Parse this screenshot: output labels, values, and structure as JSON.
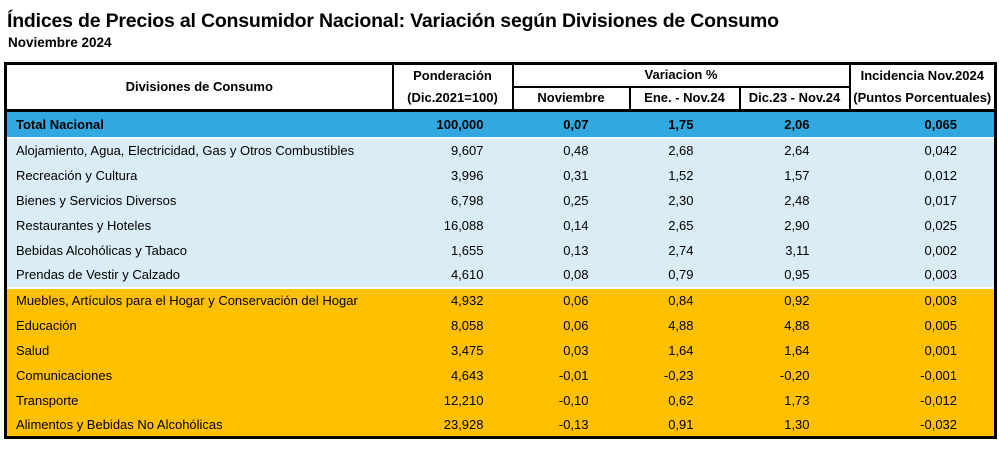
{
  "page": {
    "title": "Índices de Precios al Consumidor Nacional: Variación según Divisiones de Consumo",
    "subtitle": "Noviembre 2024"
  },
  "colors": {
    "total_row_bg": "#31a8e0",
    "positive_section_bg": "#daecf5",
    "negative_section_bg": "#ffc000",
    "border": "#000000",
    "text": "#000000"
  },
  "table": {
    "header": {
      "divisions": "Divisiones de Consumo",
      "ponderacion_line1": "Ponderación",
      "ponderacion_line2": "(Dic.2021=100)",
      "variation_group": "Variacion %",
      "variation_cols": [
        "Noviembre",
        "Ene. - Nov.24",
        "Dic.23 - Nov.24"
      ],
      "incidencia_line1": "Incidencia Nov.2024",
      "incidencia_line2": "(Puntos Porcentuales)"
    },
    "rows": [
      {
        "label": "Total Nacional",
        "ponderacion": "100,000",
        "noviembre": "0,07",
        "ene_nov24": "1,75",
        "dic23_nov24": "2,06",
        "incidencia": "0,065",
        "section": "total"
      },
      {
        "label": "Alojamiento, Agua, Electricidad, Gas y Otros Combustibles",
        "ponderacion": "9,607",
        "noviembre": "0,48",
        "ene_nov24": "2,68",
        "dic23_nov24": "2,64",
        "incidencia": "0,042",
        "section": "positive"
      },
      {
        "label": "Recreación y Cultura",
        "ponderacion": "3,996",
        "noviembre": "0,31",
        "ene_nov24": "1,52",
        "dic23_nov24": "1,57",
        "incidencia": "0,012",
        "section": "positive"
      },
      {
        "label": "Bienes y Servicios Diversos",
        "ponderacion": "6,798",
        "noviembre": "0,25",
        "ene_nov24": "2,30",
        "dic23_nov24": "2,48",
        "incidencia": "0,017",
        "section": "positive"
      },
      {
        "label": "Restaurantes y Hoteles",
        "ponderacion": "16,088",
        "noviembre": "0,14",
        "ene_nov24": "2,65",
        "dic23_nov24": "2,90",
        "incidencia": "0,025",
        "section": "positive"
      },
      {
        "label": "Bebidas Alcohólicas y Tabaco",
        "ponderacion": "1,655",
        "noviembre": "0,13",
        "ene_nov24": "2,74",
        "dic23_nov24": "3,11",
        "incidencia": "0,002",
        "section": "positive"
      },
      {
        "label": "Prendas de Vestir y Calzado",
        "ponderacion": "4,610",
        "noviembre": "0,08",
        "ene_nov24": "0,79",
        "dic23_nov24": "0,95",
        "incidencia": "0,003",
        "section": "positive"
      },
      {
        "label": "Muebles, Artículos para el Hogar y Conservación del Hogar",
        "ponderacion": "4,932",
        "noviembre": "0,06",
        "ene_nov24": "0,84",
        "dic23_nov24": "0,92",
        "incidencia": "0,003",
        "section": "negative"
      },
      {
        "label": "Educación",
        "ponderacion": "8,058",
        "noviembre": "0,06",
        "ene_nov24": "4,88",
        "dic23_nov24": "4,88",
        "incidencia": "0,005",
        "section": "negative"
      },
      {
        "label": "Salud",
        "ponderacion": "3,475",
        "noviembre": "0,03",
        "ene_nov24": "1,64",
        "dic23_nov24": "1,64",
        "incidencia": "0,001",
        "section": "negative"
      },
      {
        "label": "Comunicaciones",
        "ponderacion": "4,643",
        "noviembre": "-0,01",
        "ene_nov24": "-0,23",
        "dic23_nov24": "-0,20",
        "incidencia": "-0,001",
        "section": "negative"
      },
      {
        "label": "Transporte",
        "ponderacion": "12,210",
        "noviembre": "-0,10",
        "ene_nov24": "0,62",
        "dic23_nov24": "1,73",
        "incidencia": "-0,012",
        "section": "negative"
      },
      {
        "label": "Alimentos y Bebidas No Alcohólicas",
        "ponderacion": "23,928",
        "noviembre": "-0,13",
        "ene_nov24": "0,91",
        "dic23_nov24": "1,30",
        "incidencia": "-0,032",
        "section": "negative"
      }
    ]
  }
}
